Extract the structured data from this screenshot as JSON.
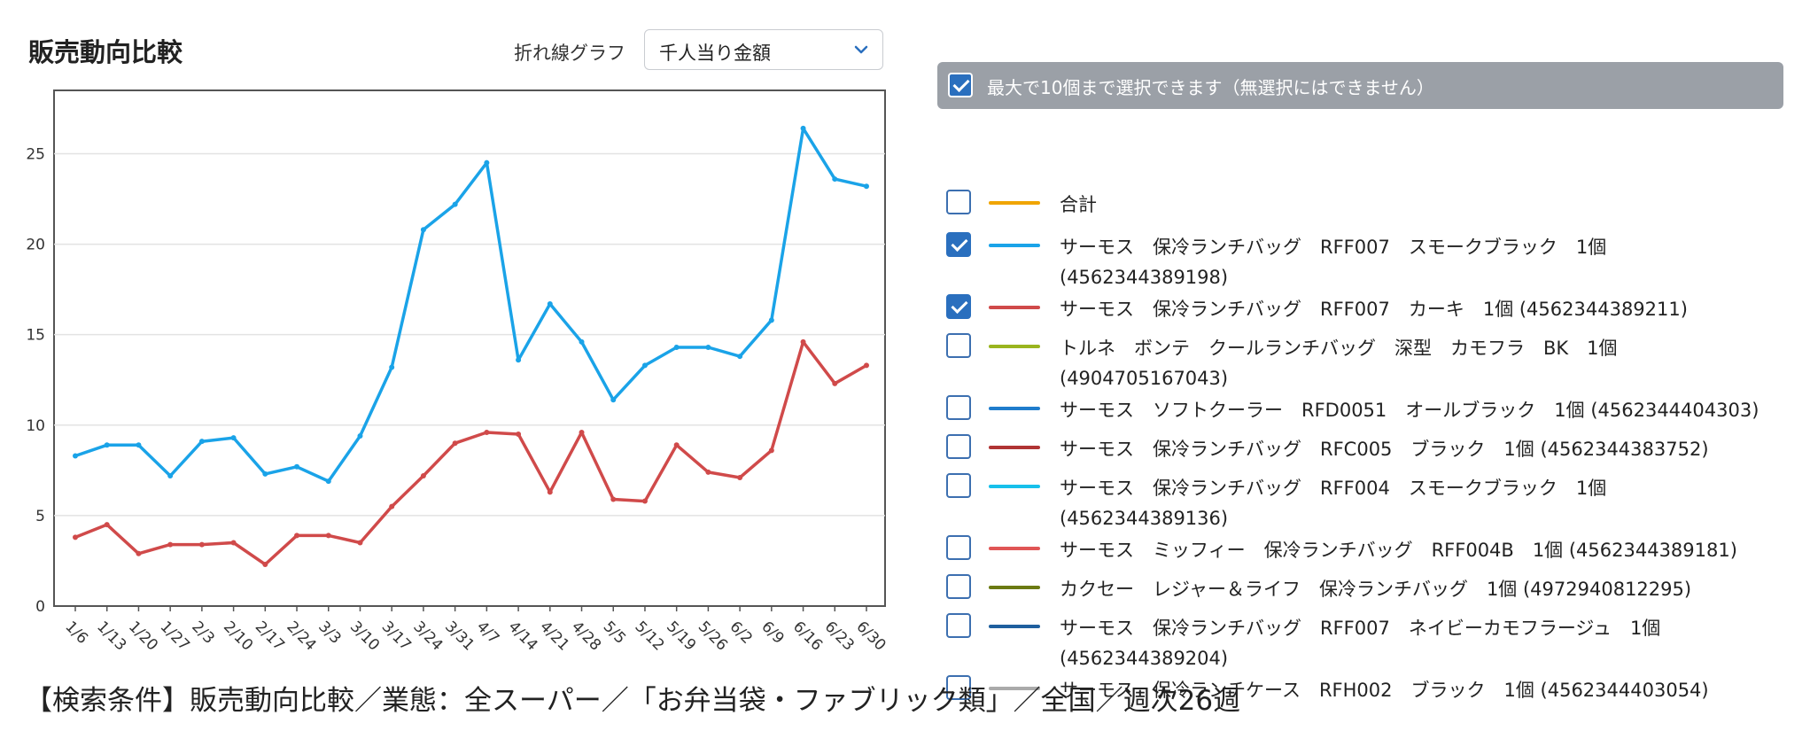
{
  "header": {
    "title": "販売動向比較",
    "chart_type_label": "折れ線グラフ",
    "metric_select_value": "千人当り金額"
  },
  "legend": {
    "header_text": "最大で10個まで選択できます（無選択にはできません）",
    "header_checked": true,
    "items": [
      {
        "label": "合計",
        "color": "#f0a500",
        "checked": false
      },
      {
        "label": "サーモス　保冷ランチバッグ　RFF007　スモークブラック　1個 (4562344389198)",
        "color": "#1aa3e8",
        "checked": true
      },
      {
        "label": "サーモス　保冷ランチバッグ　RFF007　カーキ　1個 (4562344389211)",
        "color": "#d04a4a",
        "checked": true
      },
      {
        "label": "トルネ　ボンテ　クールランチバッグ　深型　カモフラ　BK　1個 (4904705167043)",
        "color": "#9ab51e",
        "checked": false
      },
      {
        "label": "サーモス　ソフトクーラー　RFD0051　オールブラック　1個 (4562344404303)",
        "color": "#1f7ccc",
        "checked": false
      },
      {
        "label": "サーモス　保冷ランチバッグ　RFC005　ブラック　1個 (4562344383752)",
        "color": "#b03434",
        "checked": false
      },
      {
        "label": "サーモス　保冷ランチバッグ　RFF004　スモークブラック　1個 (4562344389136)",
        "color": "#17c0eb",
        "checked": false
      },
      {
        "label": "サーモス　ミッフィー　保冷ランチバッグ　RFF004B　1個 (4562344389181)",
        "color": "#e05555",
        "checked": false
      },
      {
        "label": "カクセー　レジャー＆ライフ　保冷ランチバッグ　1個 (4972940812295)",
        "color": "#6b7a12",
        "checked": false
      },
      {
        "label": "サーモス　保冷ランチバッグ　RFF007　ネイビーカモフラージュ　1個 (4562344389204)",
        "color": "#1f5f9e",
        "checked": false
      },
      {
        "label": "サーモス　保冷ランチケース　RFH002　ブラック　1個 (4562344403054)",
        "color": "#aaaaaa",
        "checked": false
      }
    ]
  },
  "footer": {
    "text": "【検索条件】販売動向比較／業態：全スーパー／「お弁当袋・ファブリック類」／全国／週次26週"
  },
  "chart_data": {
    "type": "line",
    "categories": [
      "1/6",
      "1/13",
      "1/20",
      "1/27",
      "2/3",
      "2/10",
      "2/17",
      "2/24",
      "3/3",
      "3/10",
      "3/17",
      "3/24",
      "3/31",
      "4/7",
      "4/14",
      "4/21",
      "4/28",
      "5/5",
      "5/12",
      "5/19",
      "5/26",
      "6/2",
      "6/9",
      "6/16",
      "6/23",
      "6/30"
    ],
    "series": [
      {
        "name": "サーモス　保冷ランチバッグ　RFF007　スモークブラック　1個 (4562344389198)",
        "color": "#1aa3e8",
        "values": [
          8.3,
          8.9,
          8.9,
          7.2,
          9.1,
          9.3,
          7.3,
          7.7,
          6.9,
          9.4,
          13.2,
          20.8,
          22.2,
          24.5,
          13.6,
          16.7,
          14.6,
          11.4,
          13.3,
          14.3,
          14.3,
          13.8,
          15.8,
          26.4,
          23.6,
          23.2
        ]
      },
      {
        "name": "サーモス　保冷ランチバッグ　RFF007　カーキ　1個 (4562344389211)",
        "color": "#d04a4a",
        "values": [
          3.8,
          4.5,
          2.9,
          3.4,
          3.4,
          3.5,
          2.3,
          3.9,
          3.9,
          3.5,
          5.5,
          7.2,
          9.0,
          9.6,
          9.5,
          6.3,
          9.6,
          5.9,
          5.8,
          8.9,
          7.4,
          7.1,
          8.6,
          14.6,
          12.3,
          13.3
        ]
      }
    ],
    "yticks": [
      0,
      5,
      10,
      15,
      20,
      25
    ],
    "ylim": [
      0,
      28.5
    ],
    "grid": true,
    "legend_placement": "right"
  }
}
